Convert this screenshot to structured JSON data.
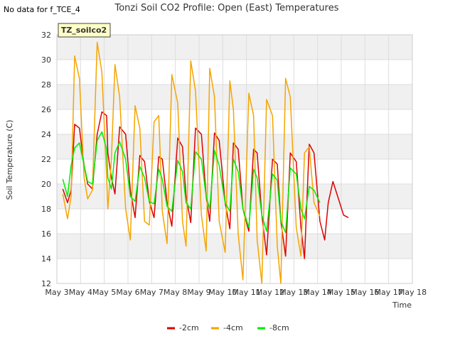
{
  "nodata_text": "No data for f_TCE_4",
  "chart_data": {
    "type": "line",
    "title": "Tonzi Soil CO2 Profile: Open (East) Temperatures",
    "xlabel": "Time",
    "ylabel": "Soil Temperature (C)",
    "ylim": [
      12,
      32
    ],
    "xlim": [
      3,
      18
    ],
    "yticks": [
      12,
      14,
      16,
      18,
      20,
      22,
      24,
      26,
      28,
      30,
      32
    ],
    "xtick_positions": [
      3,
      4,
      5,
      6,
      7,
      8,
      9,
      10,
      11,
      12,
      13,
      14,
      15,
      16,
      17,
      18
    ],
    "xtick_labels": [
      "May 3",
      "May 4",
      "May 5",
      "May 6",
      "May 7",
      "May 8",
      "May 9",
      "May 10",
      "May 11",
      "May 12",
      "May 13",
      "May 14",
      "May 15",
      "May 16",
      "May 17",
      "May 18"
    ],
    "legend_box": "TZ_soilco2",
    "grid": true,
    "legend_position": "bottom",
    "series": [
      {
        "name": "-2cm",
        "color": "#dd0000",
        "x": [
          3.25,
          3.45,
          3.6,
          3.75,
          3.95,
          4.15,
          4.3,
          4.5,
          4.7,
          4.9,
          5.1,
          5.15,
          5.3,
          5.45,
          5.65,
          5.9,
          6.1,
          6.3,
          6.5,
          6.7,
          6.9,
          7.1,
          7.3,
          7.45,
          7.65,
          7.85,
          8.1,
          8.3,
          8.45,
          8.65,
          8.85,
          9.1,
          9.3,
          9.45,
          9.65,
          9.85,
          10.1,
          10.3,
          10.45,
          10.65,
          10.85,
          11.1,
          11.3,
          11.45,
          11.65,
          11.85,
          12.1,
          12.3,
          12.45,
          12.65,
          12.85,
          13.1,
          13.3,
          13.45,
          13.65,
          13.85,
          14.1,
          14.3,
          14.45,
          14.65,
          14.85,
          15.1,
          15.3,
          15.45,
          15.65,
          15.85,
          16.1,
          16.3,
          16.45,
          16.65,
          16.85,
          17.1,
          17.3
        ],
        "values": [
          19.6,
          18.5,
          19.5,
          24.8,
          24.5,
          21.5,
          20.0,
          19.6,
          24.0,
          25.8,
          25.5,
          22.5,
          20.5,
          19.2,
          24.6,
          24.0,
          19.5,
          17.3,
          22.3,
          21.8,
          18.6,
          17.3,
          22.2,
          22.0,
          18.5,
          16.6,
          23.7,
          23.0,
          19.0,
          16.9,
          24.5,
          24.0,
          19.0,
          17.0,
          24.1,
          23.5,
          18.5,
          16.4,
          23.3,
          22.8,
          18.0,
          16.2,
          22.8,
          22.5,
          17.5,
          14.3,
          22.0,
          21.6,
          17.0,
          14.2,
          22.5,
          21.8,
          16.5,
          14.0,
          23.2,
          22.5,
          17.0,
          15.5,
          18.5,
          20.2,
          19.0,
          17.5,
          17.3,
          null,
          null,
          null,
          null,
          null,
          null,
          null,
          null,
          null,
          null
        ]
      },
      {
        "name": "-4cm",
        "color": "#f5a500",
        "x": [
          3.25,
          3.45,
          3.6,
          3.75,
          3.95,
          4.15,
          4.3,
          4.5,
          4.7,
          4.9,
          5.1,
          5.15,
          5.3,
          5.45,
          5.65,
          5.9,
          6.1,
          6.3,
          6.5,
          6.7,
          6.9,
          7.1,
          7.3,
          7.45,
          7.65,
          7.85,
          8.1,
          8.3,
          8.45,
          8.65,
          8.85,
          9.1,
          9.3,
          9.45,
          9.65,
          9.85,
          10.1,
          10.3,
          10.45,
          10.65,
          10.85,
          11.1,
          11.3,
          11.45,
          11.65,
          11.85,
          12.1,
          12.3,
          12.45,
          12.65,
          12.85,
          13.1,
          13.3,
          13.45,
          13.65,
          13.85,
          14.1,
          14.3,
          14.45,
          14.65,
          14.85,
          15.1,
          15.3,
          15.45,
          15.65,
          15.85,
          16.1,
          16.3,
          16.45,
          16.65,
          16.85,
          17.1,
          17.3
        ],
        "values": [
          19.2,
          17.2,
          19.0,
          30.3,
          28.5,
          20.5,
          18.8,
          19.5,
          31.4,
          29.0,
          20.5,
          18.0,
          22.0,
          29.6,
          27.0,
          18.0,
          15.5,
          26.3,
          24.5,
          17.0,
          16.7,
          25.0,
          25.5,
          17.8,
          15.2,
          28.8,
          26.5,
          17.0,
          15.0,
          29.9,
          27.5,
          17.5,
          14.6,
          29.3,
          27.0,
          17.0,
          14.5,
          28.3,
          26.0,
          16.0,
          12.3,
          27.3,
          25.5,
          15.5,
          12.0,
          26.8,
          25.5,
          15.0,
          12.0,
          28.5,
          27.0,
          16.5,
          14.2,
          22.5,
          23.0,
          18.5,
          17.4,
          null,
          null,
          null,
          null,
          null,
          null,
          null,
          null,
          null,
          null,
          null,
          null,
          null,
          null,
          null,
          null
        ]
      },
      {
        "name": "-8cm",
        "color": "#00ee00",
        "x": [
          3.25,
          3.45,
          3.6,
          3.75,
          3.95,
          4.15,
          4.3,
          4.5,
          4.7,
          4.9,
          5.1,
          5.15,
          5.3,
          5.45,
          5.65,
          5.9,
          6.1,
          6.3,
          6.5,
          6.7,
          6.9,
          7.1,
          7.3,
          7.45,
          7.65,
          7.85,
          8.1,
          8.3,
          8.45,
          8.65,
          8.85,
          9.1,
          9.3,
          9.45,
          9.65,
          9.85,
          10.1,
          10.3,
          10.45,
          10.65,
          10.85,
          11.1,
          11.3,
          11.45,
          11.65,
          11.85,
          12.1,
          12.3,
          12.45,
          12.65,
          12.85,
          13.1,
          13.3,
          13.45,
          13.65,
          13.85,
          14.1,
          14.3,
          14.45,
          14.65,
          14.85,
          15.1,
          15.3,
          15.45,
          15.65,
          15.85,
          16.1,
          16.3,
          16.45,
          16.65,
          16.85,
          17.1,
          17.3
        ],
        "values": [
          20.4,
          19.0,
          21.5,
          22.9,
          23.3,
          21.5,
          20.2,
          20.0,
          23.5,
          24.2,
          22.8,
          20.5,
          19.6,
          22.5,
          23.4,
          22.0,
          19.0,
          18.6,
          21.4,
          20.5,
          18.6,
          18.4,
          21.2,
          20.4,
          18.2,
          17.8,
          21.9,
          21.0,
          18.5,
          18.0,
          22.6,
          22.0,
          19.0,
          18.0,
          22.7,
          21.5,
          18.5,
          17.8,
          22.0,
          21.0,
          18.0,
          16.5,
          21.2,
          20.5,
          17.5,
          16.2,
          20.8,
          20.3,
          17.0,
          16.1,
          21.3,
          20.8,
          18.0,
          17.2,
          19.8,
          19.5,
          18.5,
          null,
          null,
          null,
          null,
          null,
          null,
          null,
          null,
          null,
          null,
          null,
          null,
          null,
          null,
          null,
          null
        ]
      }
    ]
  }
}
